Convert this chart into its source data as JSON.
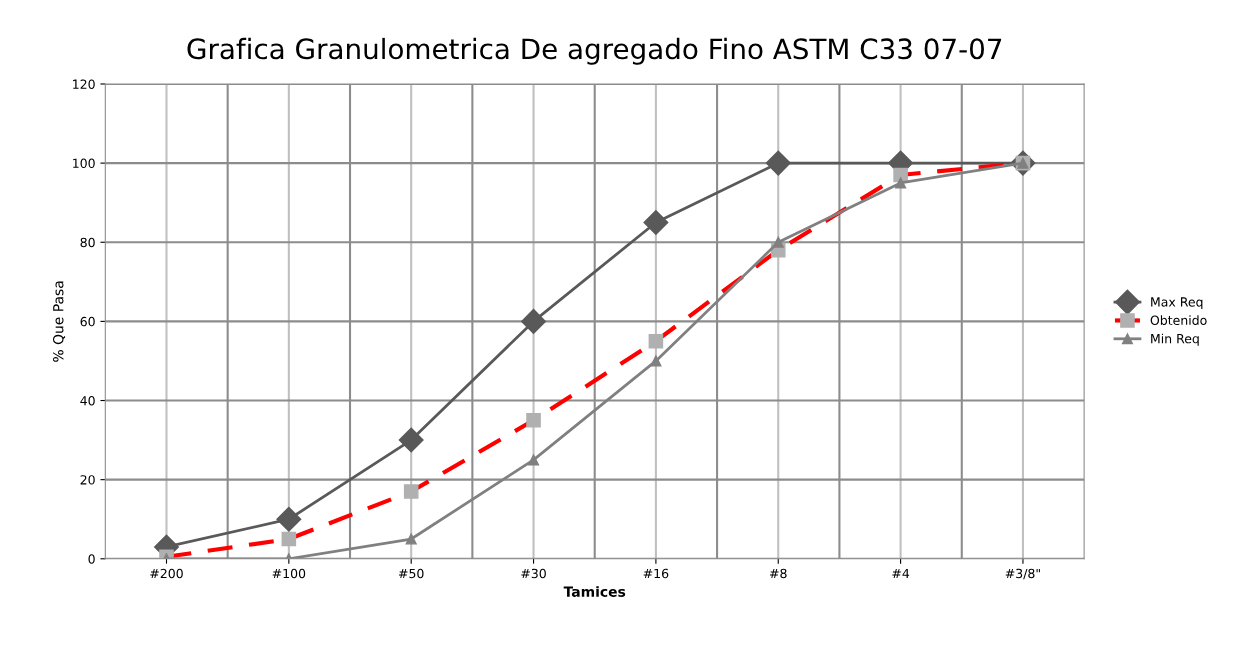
{
  "chart_data": {
    "type": "line",
    "title": "Grafica Granulometrica De agregado Fino ASTM C33 07-07",
    "xlabel": "Tamices",
    "ylabel": "% Que Pasa",
    "categories": [
      "#200",
      "#100",
      "#50",
      "#30",
      "#16",
      "#8",
      "#4",
      "#3/8\""
    ],
    "series": [
      {
        "name": "Max Req",
        "color": "#595959",
        "marker": "diamond",
        "line_style": "solid",
        "values": [
          3,
          10,
          30,
          60,
          85,
          100,
          100,
          100
        ]
      },
      {
        "name": "Obtenido",
        "color": "#ff0000",
        "marker": "square",
        "line_style": "dashed",
        "values": [
          0.5,
          5,
          17,
          35,
          55,
          78,
          97,
          100
        ]
      },
      {
        "name": "Min Req",
        "color": "#808080",
        "marker": "triangle",
        "line_style": "solid",
        "values": [
          0,
          0,
          5,
          25,
          50,
          80,
          95,
          100
        ]
      }
    ],
    "ylim": [
      0,
      120
    ],
    "yticks": [
      0,
      20,
      40,
      60,
      80,
      100,
      120
    ],
    "grid": true,
    "legend": "right"
  }
}
